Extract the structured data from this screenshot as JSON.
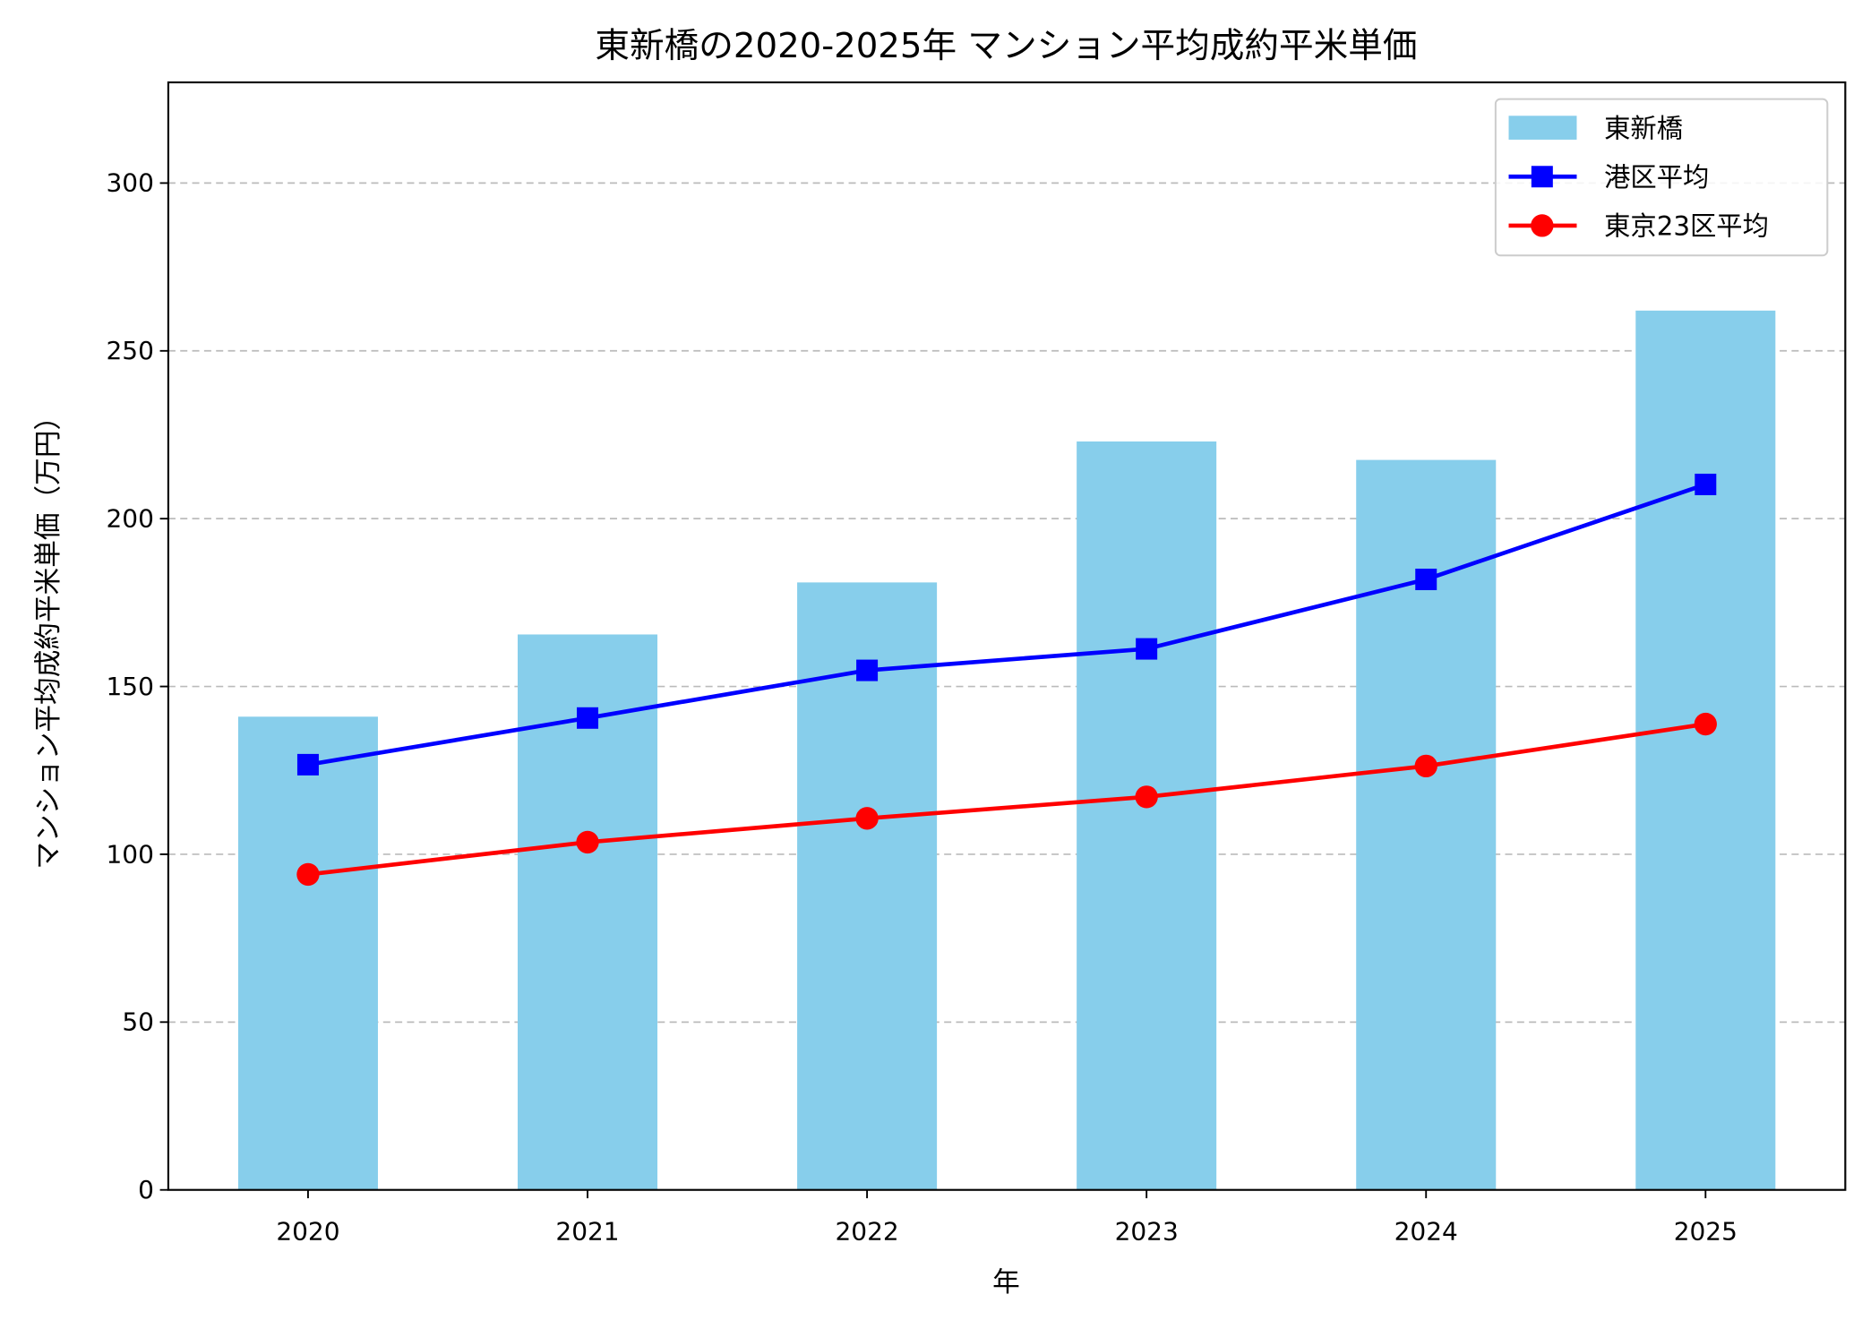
{
  "chart_data": {
    "type": "bar+line",
    "title": "東新橋の2020-2025年 マンション平均成約平米単価",
    "xlabel": "年",
    "ylabel": "マンション平均成約平米単価（万円）",
    "categories": [
      "2020",
      "2021",
      "2022",
      "2023",
      "2024",
      "2025"
    ],
    "ylim": [
      0,
      330
    ],
    "yticks": [
      0,
      50,
      100,
      150,
      200,
      250,
      300
    ],
    "grid": "y-dashed",
    "legend_position": "top-right",
    "series": [
      {
        "name": "東新橋",
        "kind": "bar",
        "color": "#87ceeb",
        "values": [
          141,
          165.5,
          181,
          223,
          217.5,
          262
        ]
      },
      {
        "name": "港区平均",
        "kind": "line",
        "marker": "square",
        "color": "#0000ff",
        "values": [
          126.7,
          140.6,
          154.8,
          161.2,
          181.9,
          210.2
        ]
      },
      {
        "name": "東京23区平均",
        "kind": "line",
        "marker": "circle",
        "color": "#ff0000",
        "values": [
          94,
          103.6,
          110.7,
          117.1,
          126.3,
          138.8
        ]
      }
    ]
  }
}
